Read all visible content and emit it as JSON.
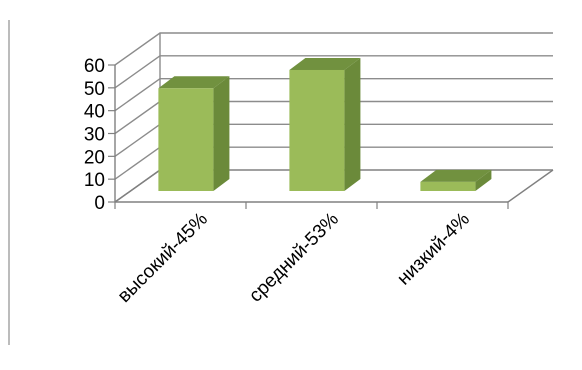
{
  "chart_data": {
    "type": "bar",
    "categories": [
      "высокий-45%",
      "средний-53%",
      "низкий-4%"
    ],
    "values": [
      45,
      53,
      4
    ],
    "ylim": [
      0,
      60
    ],
    "yticks": [
      0,
      10,
      20,
      30,
      40,
      50,
      60
    ],
    "ytick_labels": [
      "0",
      "10",
      "20",
      "30",
      "40",
      "50",
      "60"
    ],
    "grid": true,
    "three_d": true,
    "legend": "none",
    "title": "",
    "xlabel": "",
    "ylabel": "",
    "colors": {
      "bar_front": "#9bbb59",
      "bar_side": "#6b8a3a",
      "bar_top": "#71913f",
      "grid": "#8c8c8c",
      "axis": "#808080",
      "frame": "#a6a6a6"
    }
  }
}
